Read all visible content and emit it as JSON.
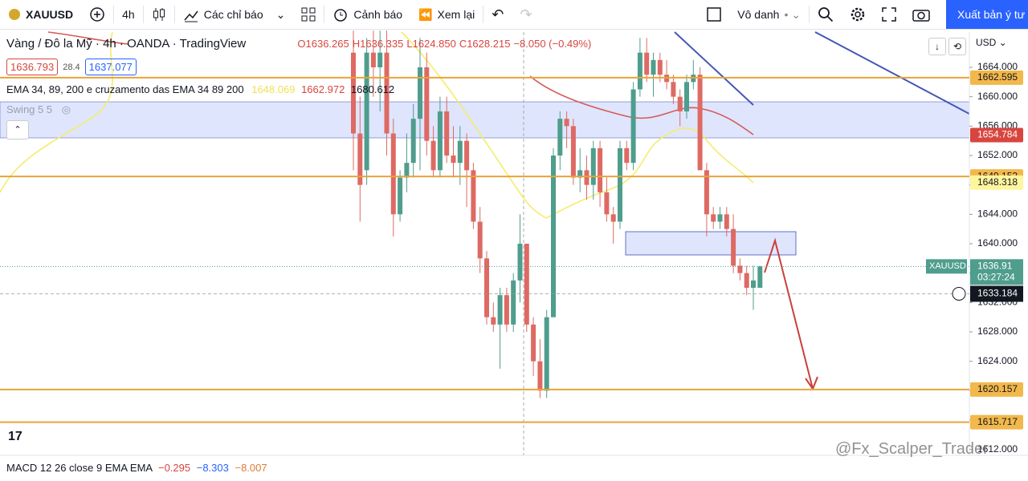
{
  "toolbar": {
    "symbol": "XAUUSD",
    "interval": "4h",
    "indicators": "Các chỉ báo",
    "alerts": "Cảnh báo",
    "replay": "Xem lại",
    "account": "Vô danh",
    "publish": "Xuất bản ý tư"
  },
  "legend": {
    "title": "Vàng / Đô la Mỹ",
    "interval": "4h",
    "broker": "OANDA",
    "source": "TradingView",
    "ohlc": [
      "O1636.265",
      "H1636.335",
      "L1624.850",
      "C1628.215",
      "−8.050 (−0.49%)"
    ],
    "bid": "1636.793",
    "spread": "28.4",
    "ask": "1637.077",
    "ema_label": "EMA 34, 89, 200 e cruzamento das EMA 34 89 200",
    "ema_values": [
      "1648.069",
      "1662.972",
      "1680.612"
    ],
    "swing": "Swing 5 5"
  },
  "chart": {
    "type": "candlestick",
    "currency": "USD",
    "up_color": "#4f9d8d",
    "down_color": "#de6a63",
    "ylim": [
      1611.2,
      1668.8
    ],
    "yticks": [
      {
        "value": 1664,
        "label": "1664.000"
      },
      {
        "value": 1660,
        "label": "1660.000"
      },
      {
        "value": 1656,
        "label": "1656.000"
      },
      {
        "value": 1652,
        "label": "1652.000"
      },
      {
        "value": 1648,
        "label": "1648.000"
      },
      {
        "value": 1644,
        "label": "1644.000"
      },
      {
        "value": 1640,
        "label": "1640.000"
      },
      {
        "value": 1636,
        "label": "1636.000"
      },
      {
        "value": 1632,
        "label": "1632.000"
      },
      {
        "value": 1628,
        "label": "1628.000"
      },
      {
        "value": 1624,
        "label": "1624.000"
      },
      {
        "value": 1620,
        "label": "1620.000"
      },
      {
        "value": 1616,
        "label": "1616.000"
      },
      {
        "value": 1612,
        "label": "1612.000"
      }
    ],
    "open": [
      1666,
      1655,
      1650,
      1666,
      1664,
      1666,
      1655,
      1644,
      1649,
      1651,
      1657,
      1664,
      1654,
      1650,
      1658,
      1652,
      1651,
      1654,
      1650,
      1643,
      1638,
      1630,
      1629,
      1633,
      1629,
      1635,
      1640,
      1629,
      1624,
      1620,
      1630,
      1652,
      1657,
      1656,
      1649,
      1650,
      1648,
      1653,
      1647,
      1644,
      1643,
      1653,
      1651,
      1661,
      1666,
      1663,
      1665,
      1663,
      1662,
      1660,
      1658,
      1662,
      1663,
      1650,
      1644,
      1643,
      1644,
      1642,
      1637,
      1636,
      1634,
      1634
    ],
    "high": [
      1669,
      1660,
      1668,
      1669,
      1669,
      1669,
      1657,
      1650,
      1655,
      1659,
      1668,
      1666,
      1656,
      1660,
      1660,
      1656,
      1656,
      1655,
      1651,
      1645,
      1639,
      1632,
      1634,
      1634,
      1636,
      1644,
      1640,
      1630,
      1627,
      1631,
      1653,
      1658,
      1658,
      1657,
      1653,
      1652,
      1654,
      1654,
      1649,
      1645,
      1654,
      1654,
      1662,
      1668,
      1668,
      1666,
      1666,
      1665,
      1663,
      1661,
      1663,
      1665,
      1664,
      1651,
      1645,
      1645,
      1645,
      1644,
      1638,
      1637,
      1637,
      1637
    ],
    "low": [
      1650,
      1643,
      1648,
      1660,
      1658,
      1652,
      1641,
      1643,
      1647,
      1649,
      1650,
      1652,
      1649,
      1649,
      1651,
      1649,
      1648,
      1645,
      1642,
      1636,
      1629,
      1628,
      1623,
      1628,
      1628,
      1632,
      1628,
      1622,
      1619,
      1619,
      1630,
      1650,
      1653,
      1648,
      1647,
      1646,
      1646,
      1645,
      1643,
      1640,
      1642,
      1650,
      1650,
      1660,
      1662,
      1660,
      1662,
      1661,
      1659,
      1656,
      1657,
      1661,
      1650,
      1641,
      1642,
      1642,
      1641,
      1636,
      1635,
      1633,
      1631,
      1634
    ],
    "close": [
      1655,
      1648,
      1666,
      1664,
      1666,
      1655,
      1644,
      1649,
      1651,
      1657,
      1664,
      1654,
      1650,
      1658,
      1652,
      1651,
      1654,
      1650,
      1643,
      1638,
      1630,
      1629,
      1633,
      1629,
      1635,
      1640,
      1629,
      1624,
      1620,
      1630,
      1652,
      1657,
      1656,
      1649,
      1650,
      1648,
      1653,
      1647,
      1644,
      1643,
      1653,
      1651,
      1661,
      1666,
      1663,
      1665,
      1663,
      1662,
      1660,
      1658,
      1662,
      1663,
      1650,
      1644,
      1643,
      1644,
      1642,
      1637,
      1636,
      1634,
      1635,
      1636.91
    ],
    "levels": [
      1662.595,
      1649.152,
      1620.157,
      1615.717
    ],
    "ema_tags": [
      {
        "value": 1654.784,
        "color": "#d8453f"
      },
      {
        "value": 1648.318,
        "color": "#fff59d"
      }
    ],
    "last_price": {
      "name": "XAUUSD",
      "value": 1636.91,
      "countdown": "03:27:24"
    },
    "crosshair": 1633.184
  },
  "macd": {
    "label": "MACD 12 26 close 9 EMA EMA",
    "values": [
      "−0.295",
      "−8.303",
      "−8.007"
    ]
  },
  "watermark": "@Fx_Scalper_Trader"
}
